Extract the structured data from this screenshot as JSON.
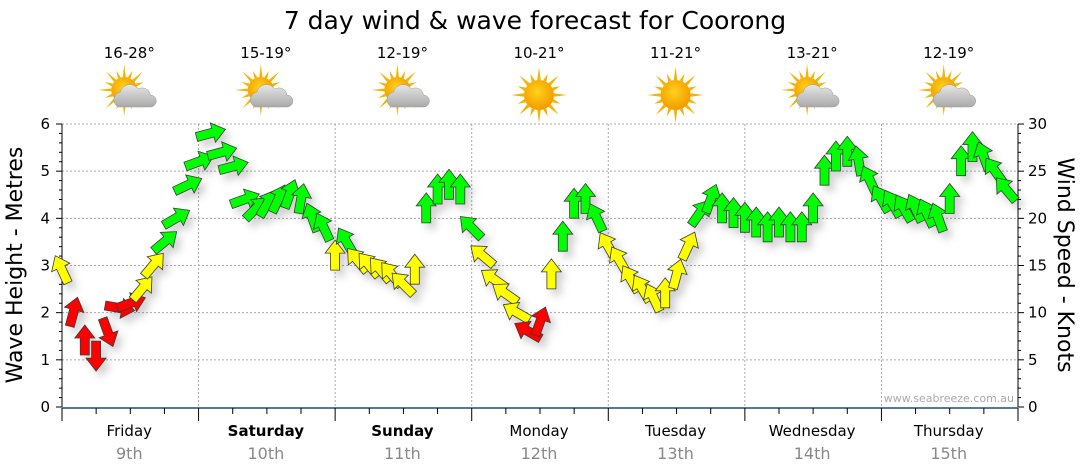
{
  "chart_data": {
    "type": "scatter",
    "title": "7 day wind & wave forecast for Coorong",
    "ylabel_left": "Wave Height - Metres",
    "ylabel_right": "Wind Speed - Knots",
    "ylim_left": [
      0,
      6
    ],
    "ylim_right": [
      0,
      30
    ],
    "yticks_left": [
      "0",
      "1",
      "2",
      "3",
      "4",
      "5",
      "6"
    ],
    "yticks_right": [
      "0",
      "5",
      "10",
      "15",
      "20",
      "25",
      "30"
    ],
    "grid": true,
    "watermark": "www.seabreeze.com.au",
    "days": [
      {
        "name": "Friday",
        "date": "9th",
        "bold": false,
        "temp": "16-28°",
        "weather": "partly-cloudy"
      },
      {
        "name": "Saturday",
        "date": "10th",
        "bold": true,
        "temp": "15-19°",
        "weather": "partly-cloudy"
      },
      {
        "name": "Sunday",
        "date": "11th",
        "bold": true,
        "temp": "12-19°",
        "weather": "partly-cloudy"
      },
      {
        "name": "Monday",
        "date": "12th",
        "bold": false,
        "temp": "10-21°",
        "weather": "sunny"
      },
      {
        "name": "Tuesday",
        "date": "13th",
        "bold": false,
        "temp": "11-21°",
        "weather": "sunny"
      },
      {
        "name": "Wednesday",
        "date": "14th",
        "bold": false,
        "temp": "13-21°",
        "weather": "partly-cloudy"
      },
      {
        "name": "Thursday",
        "date": "15th",
        "bold": false,
        "temp": "12-19°",
        "weather": "partly-cloudy"
      }
    ],
    "colors": {
      "light": "#ff0000",
      "moderate": "#ffff00",
      "strong": "#00ff00",
      "axis": "#1f4e79"
    },
    "wind_series_fields": [
      "hour",
      "knots",
      "arrow_heading_deg",
      "band"
    ],
    "wind_series": [
      [
        0,
        14.5,
        -25,
        "moderate"
      ],
      [
        2,
        10,
        15,
        "light"
      ],
      [
        4,
        7,
        0,
        "light"
      ],
      [
        6,
        5.5,
        180,
        "light"
      ],
      [
        8,
        8,
        160,
        "light"
      ],
      [
        10,
        10.5,
        100,
        "light"
      ],
      [
        12,
        11,
        70,
        "light"
      ],
      [
        14,
        12.5,
        40,
        "moderate"
      ],
      [
        16,
        15,
        40,
        "moderate"
      ],
      [
        18,
        17.5,
        50,
        "strong"
      ],
      [
        20,
        20,
        60,
        "strong"
      ],
      [
        22,
        23.5,
        65,
        "strong"
      ],
      [
        24,
        26,
        70,
        "strong"
      ],
      [
        26,
        29,
        75,
        "strong"
      ],
      [
        28,
        27,
        75,
        "strong"
      ],
      [
        30,
        25.5,
        75,
        "strong"
      ],
      [
        32,
        22,
        70,
        "strong"
      ],
      [
        34,
        21,
        45,
        "strong"
      ],
      [
        36,
        21.5,
        30,
        "strong"
      ],
      [
        38,
        22,
        25,
        "strong"
      ],
      [
        40,
        22.5,
        20,
        "strong"
      ],
      [
        42,
        22,
        10,
        "strong"
      ],
      [
        44,
        20,
        -20,
        "strong"
      ],
      [
        46,
        19,
        -25,
        "strong"
      ],
      [
        48,
        16,
        0,
        "moderate"
      ],
      [
        50,
        17.5,
        -30,
        "strong"
      ],
      [
        52,
        15.5,
        -40,
        "moderate"
      ],
      [
        54,
        15,
        -40,
        "moderate"
      ],
      [
        56,
        14.5,
        -40,
        "moderate"
      ],
      [
        58,
        14,
        -40,
        "moderate"
      ],
      [
        60,
        13,
        -45,
        "moderate"
      ],
      [
        62,
        14.5,
        0,
        "moderate"
      ],
      [
        64,
        21,
        0,
        "strong"
      ],
      [
        66,
        23,
        0,
        "strong"
      ],
      [
        68,
        23.5,
        0,
        "strong"
      ],
      [
        70,
        23,
        0,
        "strong"
      ],
      [
        72,
        19,
        -45,
        "strong"
      ],
      [
        74,
        16,
        -50,
        "moderate"
      ],
      [
        76,
        13.5,
        -55,
        "moderate"
      ],
      [
        78,
        12,
        -55,
        "moderate"
      ],
      [
        80,
        10,
        -60,
        "moderate"
      ],
      [
        82,
        8,
        -60,
        "light"
      ],
      [
        84,
        9,
        20,
        "light"
      ],
      [
        86,
        14,
        0,
        "moderate"
      ],
      [
        88,
        18,
        0,
        "strong"
      ],
      [
        90,
        21.5,
        0,
        "strong"
      ],
      [
        92,
        22,
        0,
        "strong"
      ],
      [
        94,
        20,
        -25,
        "strong"
      ],
      [
        96,
        17,
        -30,
        "moderate"
      ],
      [
        98,
        15.5,
        -30,
        "moderate"
      ],
      [
        100,
        13.5,
        -30,
        "moderate"
      ],
      [
        102,
        12.5,
        -30,
        "moderate"
      ],
      [
        104,
        11.5,
        -25,
        "moderate"
      ],
      [
        106,
        12,
        0,
        "moderate"
      ],
      [
        108,
        14,
        15,
        "moderate"
      ],
      [
        110,
        17,
        25,
        "moderate"
      ],
      [
        112,
        20.5,
        35,
        "strong"
      ],
      [
        114,
        22,
        20,
        "strong"
      ],
      [
        116,
        21,
        0,
        "strong"
      ],
      [
        118,
        20.5,
        0,
        "strong"
      ],
      [
        120,
        20,
        0,
        "strong"
      ],
      [
        122,
        19.5,
        0,
        "strong"
      ],
      [
        124,
        19,
        0,
        "strong"
      ],
      [
        126,
        19.5,
        0,
        "strong"
      ],
      [
        128,
        19,
        0,
        "strong"
      ],
      [
        130,
        19,
        0,
        "strong"
      ],
      [
        132,
        21,
        0,
        "strong"
      ],
      [
        134,
        25,
        0,
        "strong"
      ],
      [
        136,
        26.5,
        0,
        "strong"
      ],
      [
        138,
        27,
        0,
        "strong"
      ],
      [
        140,
        26,
        -10,
        "strong"
      ],
      [
        142,
        24,
        -25,
        "strong"
      ],
      [
        144,
        22,
        -30,
        "strong"
      ],
      [
        146,
        21.5,
        -30,
        "strong"
      ],
      [
        148,
        21,
        -30,
        "strong"
      ],
      [
        150,
        21,
        -25,
        "strong"
      ],
      [
        152,
        20.5,
        -25,
        "strong"
      ],
      [
        154,
        20,
        -20,
        "strong"
      ],
      [
        156,
        22,
        0,
        "strong"
      ],
      [
        158,
        26,
        0,
        "strong"
      ],
      [
        160,
        27.5,
        0,
        "strong"
      ],
      [
        162,
        26.5,
        -20,
        "strong"
      ],
      [
        164,
        25,
        -35,
        "strong"
      ],
      [
        166,
        23,
        -40,
        "strong"
      ]
    ]
  }
}
